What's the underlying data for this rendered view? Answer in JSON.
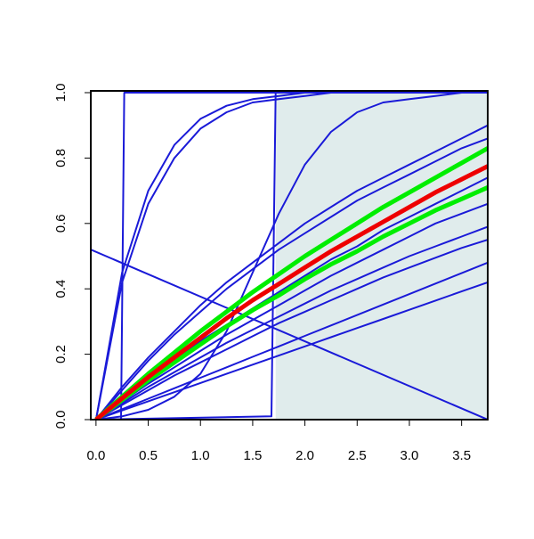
{
  "chart_data": {
    "type": "line",
    "xlim": [
      -0.05,
      3.75
    ],
    "ylim": [
      0,
      1
    ],
    "xticks": [
      {
        "value": 0,
        "label": "0.0"
      },
      {
        "value": 0.5,
        "label": "0.5"
      },
      {
        "value": 1,
        "label": "1.0"
      },
      {
        "value": 1.5,
        "label": "1.5"
      },
      {
        "value": 2,
        "label": "2.0"
      },
      {
        "value": 2.5,
        "label": "2.5"
      },
      {
        "value": 3,
        "label": "3.0"
      },
      {
        "value": 3.5,
        "label": "3.5"
      }
    ],
    "yticks": [
      {
        "value": 0,
        "label": "0.0"
      },
      {
        "value": 0.2,
        "label": "0.2"
      },
      {
        "value": 0.4,
        "label": "0.4"
      },
      {
        "value": 0.6,
        "label": "0.6"
      },
      {
        "value": 0.8,
        "label": "0.8"
      },
      {
        "value": 1,
        "label": "1.0"
      }
    ],
    "shade": {
      "x": [
        1.72,
        3.75
      ],
      "color": "#e0ecec"
    },
    "x": [
      0,
      0.25,
      0.5,
      0.75,
      1,
      1.25,
      1.5,
      1.75,
      2,
      2.25,
      2.5,
      2.75,
      3,
      3.25,
      3.5,
      3.75
    ],
    "series": [
      {
        "color": "#1a1ad8",
        "values": [
          0,
          0.1,
          0.19,
          0.27,
          0.35,
          0.42,
          0.48,
          0.54,
          0.6,
          0.65,
          0.7,
          0.74,
          0.78,
          0.82,
          0.86,
          0.9
        ]
      },
      {
        "color": "#1a1ad8",
        "values": [
          0,
          0.09,
          0.18,
          0.26,
          0.33,
          0.4,
          0.46,
          0.52,
          0.57,
          0.62,
          0.67,
          0.71,
          0.75,
          0.79,
          0.83,
          0.86
        ]
      },
      {
        "color": "#1a1ad8",
        "values": [
          0,
          0.06,
          0.12,
          0.18,
          0.24,
          0.29,
          0.34,
          0.39,
          0.44,
          0.49,
          0.53,
          0.58,
          0.62,
          0.66,
          0.7,
          0.74
        ]
      },
      {
        "color": "#1a1ad8",
        "values": [
          0,
          0.055,
          0.11,
          0.16,
          0.21,
          0.26,
          0.305,
          0.35,
          0.395,
          0.44,
          0.48,
          0.52,
          0.56,
          0.6,
          0.63,
          0.66
        ]
      },
      {
        "color": "#1a1ad8",
        "values": [
          0,
          0.05,
          0.1,
          0.145,
          0.19,
          0.235,
          0.275,
          0.315,
          0.355,
          0.395,
          0.43,
          0.465,
          0.5,
          0.53,
          0.56,
          0.59
        ]
      },
      {
        "color": "#1a1ad8",
        "values": [
          0,
          0.045,
          0.09,
          0.135,
          0.175,
          0.215,
          0.255,
          0.295,
          0.33,
          0.365,
          0.4,
          0.435,
          0.465,
          0.495,
          0.525,
          0.55
        ]
      },
      {
        "color": "#1a1ad8",
        "values": [
          0,
          0.032,
          0.064,
          0.096,
          0.128,
          0.16,
          0.192,
          0.224,
          0.256,
          0.288,
          0.32,
          0.352,
          0.384,
          0.416,
          0.448,
          0.48
        ]
      },
      {
        "color": "#1a1ad8",
        "values": [
          0,
          0.028,
          0.056,
          0.084,
          0.112,
          0.14,
          0.168,
          0.196,
          0.224,
          0.252,
          0.28,
          0.308,
          0.336,
          0.364,
          0.392,
          0.42
        ]
      },
      {
        "color": "#1a1ad8",
        "values": [
          0,
          0.45,
          0.7,
          0.84,
          0.92,
          0.96,
          0.98,
          0.99,
          1,
          1,
          1,
          1,
          1,
          1,
          1,
          1
        ]
      },
      {
        "color": "#1a1ad8",
        "values": [
          0,
          0.42,
          0.66,
          0.8,
          0.89,
          0.94,
          0.97,
          0.98,
          0.99,
          1,
          1,
          1,
          1,
          1,
          1,
          1
        ]
      },
      {
        "color": "#1a1ad8",
        "values": [
          0,
          0.01,
          0.03,
          0.07,
          0.14,
          0.27,
          0.45,
          0.63,
          0.78,
          0.88,
          0.94,
          0.97,
          0.98,
          0.99,
          1,
          1
        ]
      },
      {
        "color": "#1a1ad8",
        "x": [
          0,
          0.24,
          0.27,
          3.75
        ],
        "values": [
          0,
          0,
          1,
          1
        ]
      },
      {
        "color": "#1a1ad8",
        "x": [
          0,
          1.68,
          1.72,
          3.75
        ],
        "values": [
          0,
          0.01,
          1,
          1
        ]
      },
      {
        "color": "#1a1ad8",
        "x": [
          -0.05,
          3.75
        ],
        "values": [
          0.52,
          0
        ]
      },
      {
        "color": "#00ee00",
        "width": 5,
        "values": [
          0,
          0.07,
          0.14,
          0.205,
          0.27,
          0.33,
          0.39,
          0.445,
          0.5,
          0.55,
          0.6,
          0.65,
          0.695,
          0.74,
          0.785,
          0.83
        ]
      },
      {
        "color": "#00ee00",
        "width": 5,
        "values": [
          0,
          0.06,
          0.12,
          0.175,
          0.23,
          0.285,
          0.335,
          0.38,
          0.43,
          0.475,
          0.515,
          0.56,
          0.6,
          0.64,
          0.675,
          0.71
        ]
      },
      {
        "color": "#ee0000",
        "width": 5,
        "values": [
          0,
          0.065,
          0.13,
          0.19,
          0.25,
          0.31,
          0.365,
          0.415,
          0.465,
          0.515,
          0.56,
          0.605,
          0.65,
          0.695,
          0.735,
          0.775
        ]
      }
    ]
  }
}
